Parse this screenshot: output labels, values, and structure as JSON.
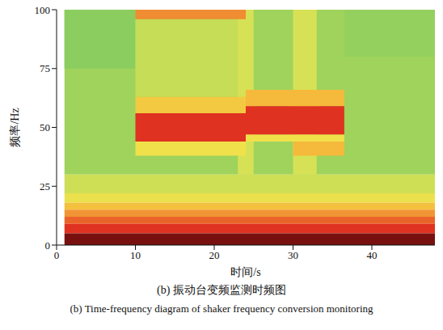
{
  "chart_data": {
    "type": "heatmap",
    "title": "(b) 振动台变频监测时频图",
    "subtitle": "(b) Time-frequency diagram of shaker frequency conversion monitoring",
    "x_label": "时间/s",
    "y_label": "频率/Hz",
    "xlim": [
      0,
      48
    ],
    "xticks": [
      0,
      10,
      20,
      30,
      40
    ],
    "ylim": [
      0,
      100
    ],
    "yticks": [
      0,
      25,
      50,
      75,
      100
    ],
    "grid": false,
    "clim": [
      0,
      1
    ],
    "cells": [
      [
        1,
        48,
        30,
        100,
        0.27
      ],
      [
        1,
        10,
        75,
        100,
        0.22
      ],
      [
        36.5,
        48,
        80,
        100,
        0.24
      ],
      [
        1,
        48,
        22,
        30,
        0.38
      ],
      [
        1,
        48,
        18,
        22,
        0.48
      ],
      [
        1,
        48,
        15,
        18,
        0.58
      ],
      [
        1,
        48,
        12,
        15,
        0.68
      ],
      [
        1,
        48,
        9,
        12,
        0.78
      ],
      [
        1,
        48,
        5,
        9,
        0.88
      ],
      [
        1,
        48,
        0,
        5,
        1.0
      ],
      [
        10,
        24,
        63,
        96,
        0.36
      ],
      [
        23,
        25,
        30,
        100,
        0.4
      ],
      [
        30,
        33,
        30,
        100,
        0.4
      ],
      [
        10,
        24,
        96,
        100,
        0.7
      ],
      [
        10,
        24,
        56,
        63,
        0.56
      ],
      [
        10,
        24,
        38,
        44,
        0.5
      ],
      [
        10,
        24,
        44,
        56,
        0.88
      ],
      [
        24,
        36.5,
        59,
        66,
        0.6
      ],
      [
        30,
        36.5,
        38,
        44,
        0.6
      ],
      [
        24,
        36.5,
        44,
        47,
        0.5
      ],
      [
        24,
        36.5,
        47,
        59,
        0.88
      ]
    ]
  }
}
